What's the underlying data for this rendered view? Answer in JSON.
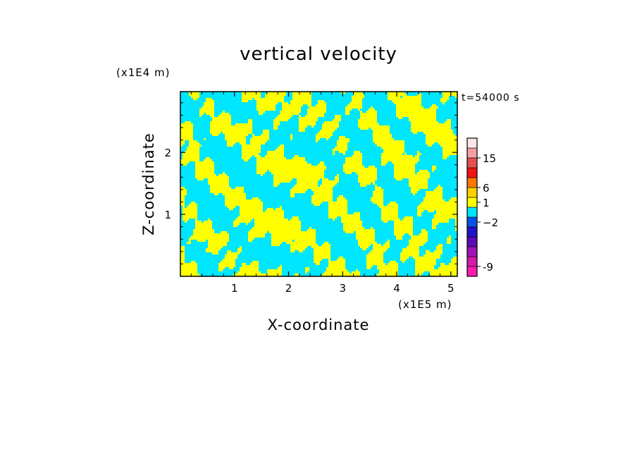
{
  "chart_data": {
    "type": "heatmap",
    "title": "vertical velocity",
    "xlabel": "X-coordinate",
    "ylabel": "Z-coordinate",
    "x_unit": "(x1E5 m)",
    "y_unit": "(x1E4 m)",
    "time_label": "t=54000 s",
    "xlim": [
      0,
      5.12
    ],
    "ylim": [
      0,
      2.98
    ],
    "x_ticks": [
      {
        "value": 1,
        "label": "1"
      },
      {
        "value": 2,
        "label": "2"
      },
      {
        "value": 3,
        "label": "3"
      },
      {
        "value": 4,
        "label": "4"
      },
      {
        "value": 5,
        "label": "5"
      }
    ],
    "y_ticks": [
      {
        "value": 1,
        "label": "1"
      },
      {
        "value": 2,
        "label": "2"
      }
    ],
    "field_colors": {
      "positive": "#ffff00",
      "negative": "#00e6ff"
    },
    "colorbar": {
      "levels": [
        {
          "color": "#ff1ab0"
        },
        {
          "color": "#d21aa8"
        },
        {
          "color": "#a014b4"
        },
        {
          "color": "#5a0ab4"
        },
        {
          "color": "#1e14c8"
        },
        {
          "color": "#0a50e6"
        },
        {
          "color": "#00e6ff"
        },
        {
          "color": "#ffff00"
        },
        {
          "color": "#ffd200"
        },
        {
          "color": "#ff7800"
        },
        {
          "color": "#f01414"
        },
        {
          "color": "#e65050"
        },
        {
          "color": "#f2a0a0"
        },
        {
          "color": "#fde6e6"
        }
      ],
      "labels": [
        {
          "text": "-9",
          "level": 1
        },
        {
          "text": "−2",
          "level": 5.5
        },
        {
          "text": "1",
          "level": 7.5
        },
        {
          "text": "6",
          "level": 9
        },
        {
          "text": "15",
          "level": 12
        }
      ]
    }
  }
}
